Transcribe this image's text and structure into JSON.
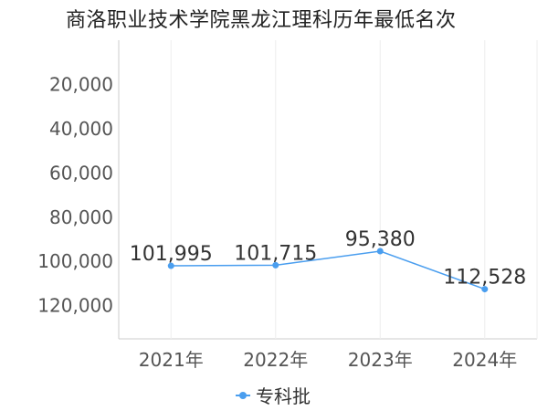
{
  "chart_data": {
    "type": "line",
    "title": "商洛职业技术学院黑龙江理科历年最低名次",
    "categories": [
      "2021年",
      "2022年",
      "2023年",
      "2024年"
    ],
    "series": [
      {
        "name": "专科批",
        "values": [
          101995,
          101715,
          95380,
          112528
        ],
        "labels": [
          "101,995",
          "101,715",
          "95,380",
          "112,528"
        ]
      }
    ],
    "y_ticks": [
      20000,
      40000,
      60000,
      80000,
      100000,
      120000
    ],
    "y_tick_labels": [
      "20,000",
      "40,000",
      "60,000",
      "80,000",
      "100,000",
      "120,000"
    ],
    "ylim": [
      0,
      135000
    ],
    "y_reversed": true,
    "grid": true,
    "legend_position": "bottom",
    "color": "#4a9eef"
  }
}
